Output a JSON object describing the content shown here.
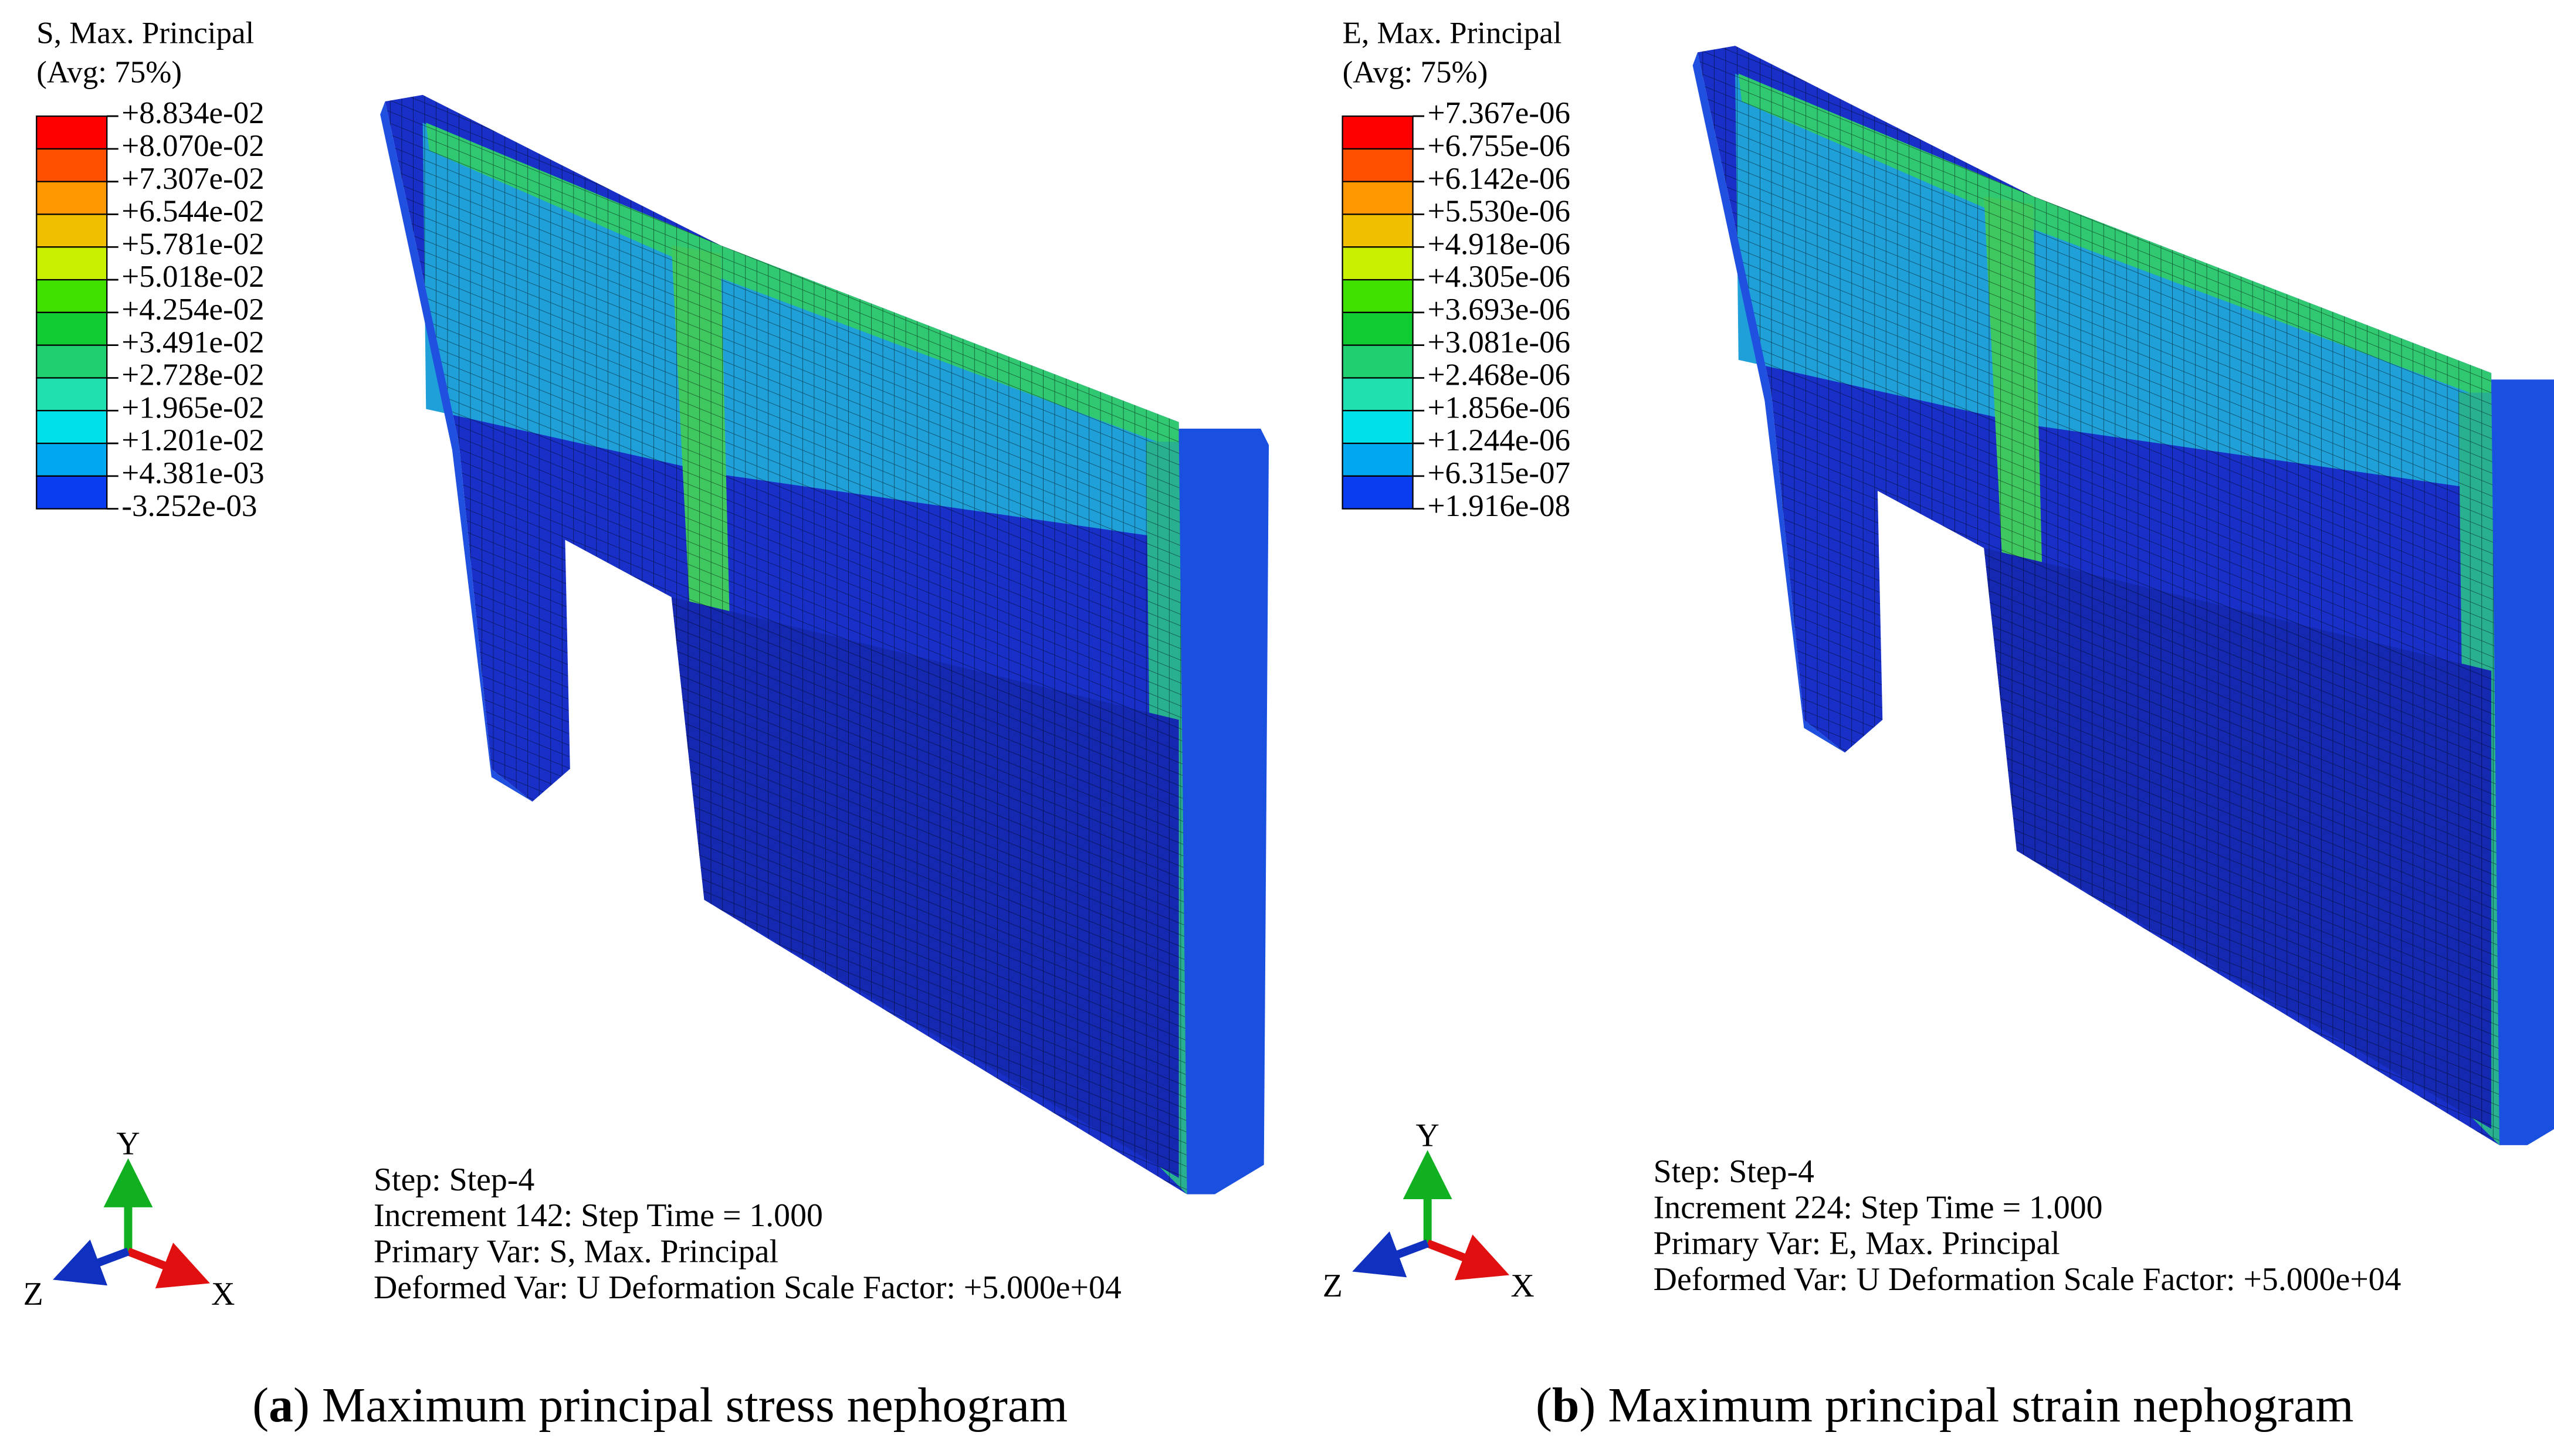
{
  "panels": [
    {
      "legend_title": [
        "S, Max. Principal",
        "(Avg: 75%)"
      ],
      "legend_labels": [
        "+8.834e-02",
        "+8.070e-02",
        "+7.307e-02",
        "+6.544e-02",
        "+5.781e-02",
        "+5.018e-02",
        "+4.254e-02",
        "+3.491e-02",
        "+2.728e-02",
        "+1.965e-02",
        "+1.201e-02",
        "+4.381e-03",
        "-3.252e-03"
      ],
      "legend_colors": [
        "#ff0000",
        "#ff5000",
        "#ff9800",
        "#f0c000",
        "#c8f000",
        "#40e000",
        "#10cc30",
        "#20d070",
        "#20e0b0",
        "#00e0e8",
        "#00a8f0",
        "#0a3cf0"
      ],
      "step_info": [
        "Step: Step-4",
        "Increment     142: Step Time =     1.000",
        "Primary Var: S, Max. Principal",
        "Deformed Var: U   Deformation Scale Factor: +5.000e+04"
      ],
      "axes": {
        "x": "X",
        "y": "Y",
        "z": "Z"
      },
      "caption": [
        "(",
        "a",
        ") Maximum principal stress nephogram"
      ]
    },
    {
      "legend_title": [
        "E, Max. Principal",
        "(Avg: 75%)"
      ],
      "legend_labels": [
        "+7.367e-06",
        "+6.755e-06",
        "+6.142e-06",
        "+5.530e-06",
        "+4.918e-06",
        "+4.305e-06",
        "+3.693e-06",
        "+3.081e-06",
        "+2.468e-06",
        "+1.856e-06",
        "+1.244e-06",
        "+6.315e-07",
        "+1.916e-08"
      ],
      "legend_colors": [
        "#ff0000",
        "#ff5000",
        "#ff9800",
        "#f0c000",
        "#c8f000",
        "#40e000",
        "#10cc30",
        "#20d070",
        "#20e0b0",
        "#00e0e8",
        "#00a8f0",
        "#0a3cf0"
      ],
      "step_info": [
        "Step: Step-4",
        "Increment     224: Step Time =     1.000",
        "Primary Var: E, Max. Principal",
        "Deformed Var: U   Deformation Scale Factor: +5.000e+04"
      ],
      "axes": {
        "x": "X",
        "y": "Y",
        "z": "Z"
      },
      "caption": [
        "(",
        "b",
        ") Maximum principal strain nephogram"
      ]
    }
  ]
}
